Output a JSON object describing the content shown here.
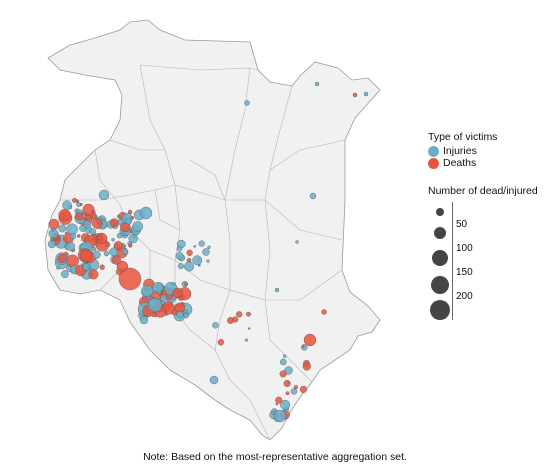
{
  "legend": {
    "type_title": "Type of victims",
    "types": [
      {
        "label": "Injuries",
        "color": "#6aaec9"
      },
      {
        "label": "Deaths",
        "color": "#e8553e"
      }
    ],
    "size_title": "Number of dead/injured",
    "sizes": [
      {
        "label": "50",
        "value": 50
      },
      {
        "label": "100",
        "value": 100
      },
      {
        "label": "150",
        "value": 150
      },
      {
        "label": "200",
        "value": 200
      }
    ]
  },
  "note": "Note: Based on the most-representative aggregation set.",
  "colors": {
    "land": "#f1f1f1",
    "border": "#b5b5b5",
    "outline": "#9a9a9a",
    "injuries": "#6aaec9",
    "deaths": "#e8553e",
    "size_dot": "#444444"
  }
}
